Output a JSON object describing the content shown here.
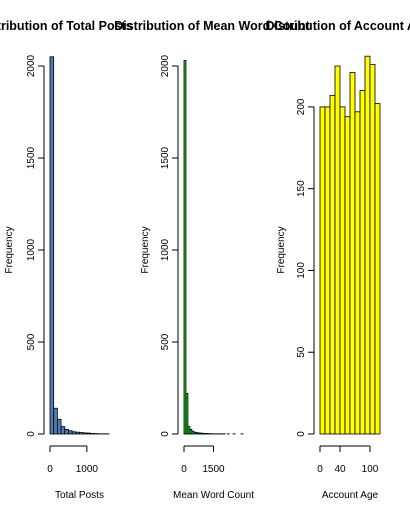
{
  "chart_data": [
    {
      "type": "bar",
      "title": "Distribution of Total Posts",
      "xlabel": "Total Posts",
      "ylabel": "Frequency",
      "fill": "#4f7db2",
      "xlim": [
        0,
        1600
      ],
      "x_ticks": [
        0,
        1000
      ],
      "y_ticks": [
        0,
        500,
        1000,
        1500,
        2000
      ],
      "ylim": [
        0,
        2000
      ],
      "bins": [
        [
          0,
          100
        ],
        [
          100,
          200
        ],
        [
          200,
          300
        ],
        [
          300,
          400
        ],
        [
          400,
          500
        ],
        [
          500,
          600
        ],
        [
          600,
          700
        ],
        [
          700,
          800
        ],
        [
          800,
          900
        ],
        [
          900,
          1000
        ],
        [
          1000,
          1100
        ],
        [
          1100,
          1200
        ],
        [
          1200,
          1300
        ],
        [
          1300,
          1400
        ],
        [
          1400,
          1500
        ],
        [
          1500,
          1600
        ]
      ],
      "values": [
        2050,
        140,
        80,
        40,
        25,
        18,
        12,
        10,
        8,
        6,
        5,
        3,
        2,
        1,
        1,
        1
      ]
    },
    {
      "type": "bar",
      "title": "Distribution of Mean Word Count",
      "xlabel": "Mean Word Count",
      "ylabel": "Frequency",
      "fill": "#22cc22",
      "xlim": [
        0,
        3000
      ],
      "x_ticks": [
        0,
        1500
      ],
      "y_ticks": [
        0,
        500,
        1000,
        1500,
        2000
      ],
      "ylim": [
        0,
        2000
      ],
      "bins": [
        [
          0,
          100
        ],
        [
          100,
          200
        ],
        [
          200,
          300
        ],
        [
          300,
          400
        ],
        [
          400,
          500
        ],
        [
          500,
          600
        ],
        [
          600,
          700
        ],
        [
          700,
          800
        ],
        [
          800,
          900
        ],
        [
          900,
          1000
        ],
        [
          1000,
          1100
        ],
        [
          1100,
          1200
        ],
        [
          1200,
          1300
        ],
        [
          1300,
          1400
        ],
        [
          1400,
          1500
        ],
        [
          1500,
          1600
        ],
        [
          1600,
          1700
        ],
        [
          1700,
          1800
        ],
        [
          1800,
          1900
        ],
        [
          1900,
          2000
        ],
        [
          2000,
          2100
        ],
        [
          2100,
          2200
        ],
        [
          2200,
          2300
        ],
        [
          2300,
          2400
        ],
        [
          2400,
          2500
        ],
        [
          2500,
          2600
        ],
        [
          2600,
          2700
        ],
        [
          2700,
          2800
        ],
        [
          2800,
          2900
        ],
        [
          2900,
          3000
        ]
      ],
      "values": [
        2030,
        220,
        40,
        25,
        15,
        10,
        8,
        6,
        5,
        4,
        3,
        3,
        2,
        2,
        1,
        1,
        1,
        1,
        1,
        1,
        1,
        0,
        1,
        0,
        0,
        1,
        0,
        0,
        0,
        1
      ]
    },
    {
      "type": "bar",
      "title": "Distribution of Account Age",
      "xlabel": "Account Age",
      "ylabel": "Frequency",
      "fill": "#ffff00",
      "xlim": [
        0,
        120
      ],
      "x_ticks": [
        0,
        40,
        100
      ],
      "y_ticks": [
        0,
        50,
        100,
        150,
        200
      ],
      "ylim": [
        0,
        225
      ],
      "bins": [
        [
          0,
          10
        ],
        [
          10,
          20
        ],
        [
          20,
          30
        ],
        [
          30,
          40
        ],
        [
          40,
          50
        ],
        [
          50,
          60
        ],
        [
          60,
          70
        ],
        [
          70,
          80
        ],
        [
          80,
          90
        ],
        [
          90,
          100
        ],
        [
          100,
          110
        ],
        [
          110,
          120
        ]
      ],
      "values": [
        200,
        200,
        207,
        225,
        200,
        194,
        221,
        197,
        210,
        231,
        226,
        202
      ]
    }
  ]
}
